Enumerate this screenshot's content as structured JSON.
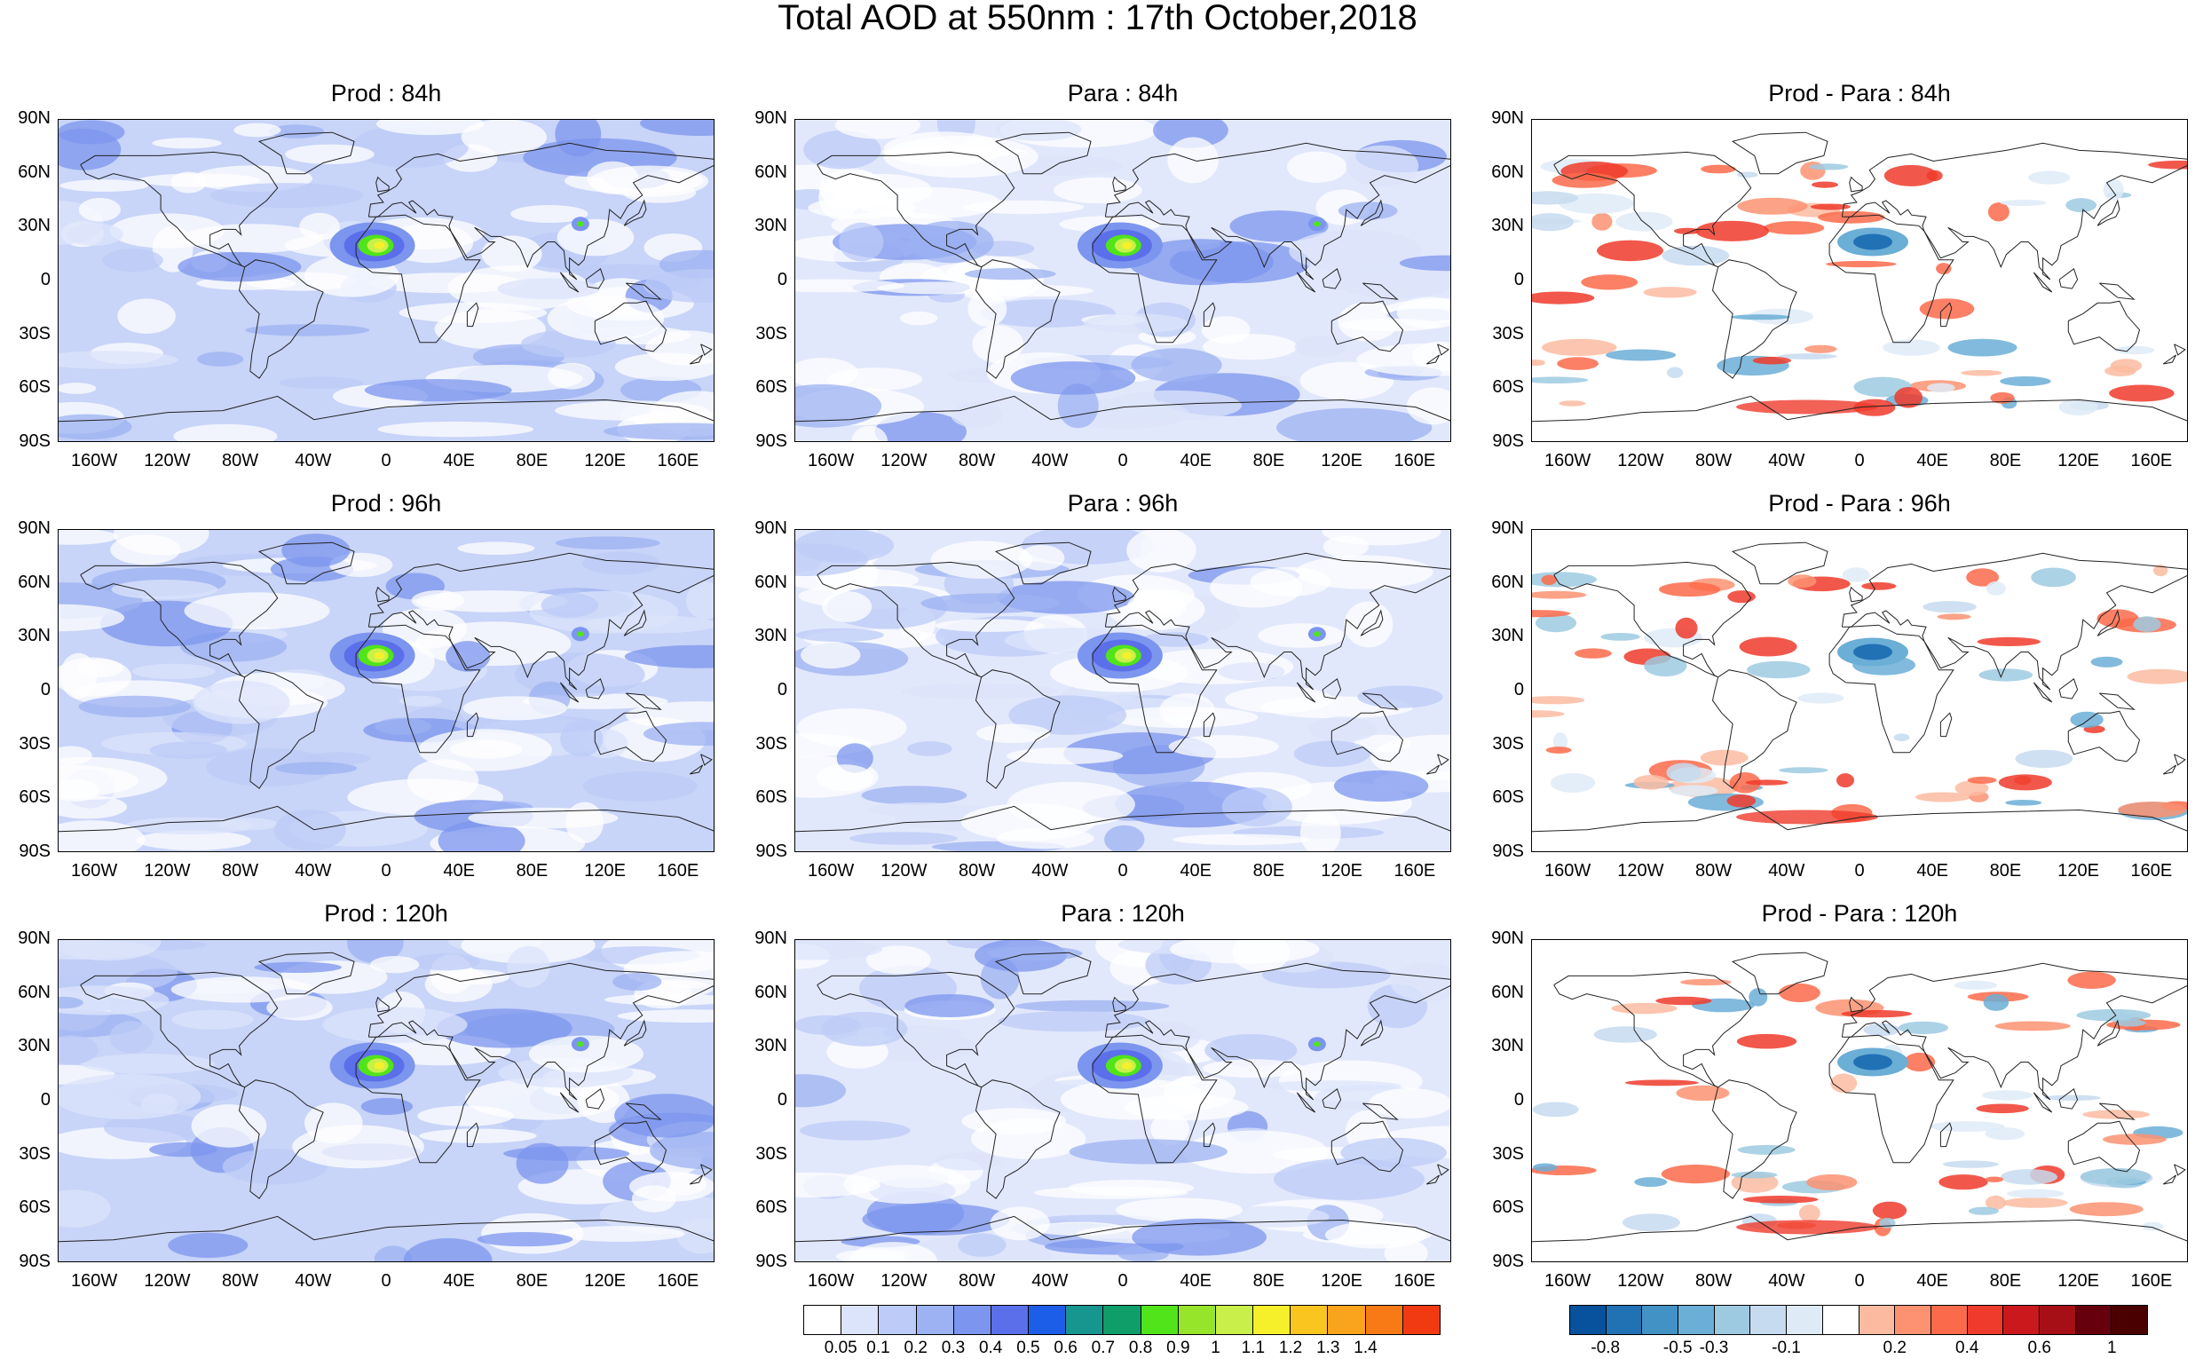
{
  "title": "Total AOD at 550nm : 17th October,2018",
  "panels": [
    {
      "title": "Prod : 84h",
      "kind": "prod"
    },
    {
      "title": "Para : 84h",
      "kind": "para"
    },
    {
      "title": "Prod - Para : 84h",
      "kind": "diff"
    },
    {
      "title": "Prod : 96h",
      "kind": "prod"
    },
    {
      "title": "Para : 96h",
      "kind": "para"
    },
    {
      "title": "Prod - Para : 96h",
      "kind": "diff"
    },
    {
      "title": "Prod : 120h",
      "kind": "prod"
    },
    {
      "title": "Para : 120h",
      "kind": "para"
    },
    {
      "title": "Prod - Para : 120h",
      "kind": "diff"
    }
  ],
  "lat_labels": [
    "90N",
    "60N",
    "30N",
    "0",
    "30S",
    "60S",
    "90S"
  ],
  "lon_labels": [
    "160W",
    "120W",
    "80W",
    "40W",
    "0",
    "40E",
    "80E",
    "120E",
    "160E"
  ],
  "aod_colorbar": {
    "labels": [
      "0.05",
      "0.1",
      "0.2",
      "0.3",
      "0.4",
      "0.5",
      "0.6",
      "0.7",
      "0.8",
      "0.9",
      "1",
      "1.1",
      "1.2",
      "1.3",
      "1.4"
    ],
    "colors": [
      "#ffffff",
      "#dce4fb",
      "#bccbf7",
      "#9cb2f2",
      "#7c95ee",
      "#5c6fea",
      "#1c5ee8",
      "#17958f",
      "#0f9d6a",
      "#51e41a",
      "#96e52b",
      "#c9f04a",
      "#f6f02b",
      "#fbc51f",
      "#f9a41c",
      "#f87a17",
      "#f13a12"
    ]
  },
  "diff_colorbar": {
    "labels": [
      "-0.8",
      "-0.5",
      "-0.3",
      "-0.1",
      "0.2",
      "0.4",
      "0.6",
      "1"
    ],
    "colors": [
      "#08519c",
      "#2171b5",
      "#4292c6",
      "#6baed6",
      "#9ecae1",
      "#c6dbef",
      "#deebf7",
      "#ffffff",
      "#fcbba1",
      "#fc9272",
      "#fb6a4a",
      "#ef3b2c",
      "#cb181d",
      "#a50f15",
      "#67000d",
      "#4a0000"
    ]
  }
}
